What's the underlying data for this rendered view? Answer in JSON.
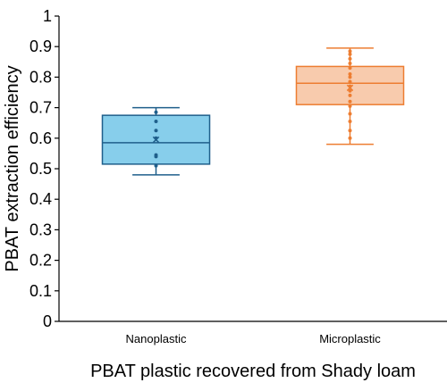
{
  "chart_data": {
    "type": "box",
    "xlabel": "PBAT plastic recovered from Shady loam",
    "ylabel": "PBAT extraction efficiency",
    "ylim": [
      0,
      1
    ],
    "yticks": [
      0,
      0.1,
      0.2,
      0.3,
      0.4,
      0.5,
      0.6,
      0.7,
      0.8,
      0.9,
      1
    ],
    "ytick_labels": [
      "0",
      "0.1",
      "0.2",
      "0.3",
      "0.4",
      "0.5",
      "0.6",
      "0.7",
      "0.8",
      "0.9",
      "1"
    ],
    "grid": false,
    "legend": "none",
    "categories": [
      "Nanoplastic",
      "Microplastic"
    ],
    "boxes": [
      {
        "category": "Nanoplastic",
        "fill": "#87ceeb",
        "stroke": "#1f5f8b",
        "whisker_low": 0.48,
        "q1": 0.515,
        "median": 0.585,
        "q3": 0.675,
        "whisker_high": 0.7,
        "mean": 0.595,
        "points": [
          0.51,
          0.54,
          0.545,
          0.6,
          0.625,
          0.655,
          0.685
        ]
      },
      {
        "category": "Microplastic",
        "fill": "#f8cbad",
        "stroke": "#ed7d31",
        "whisker_low": 0.58,
        "q1": 0.71,
        "median": 0.78,
        "q3": 0.835,
        "whisker_high": 0.895,
        "mean": 0.765,
        "points": [
          0.6,
          0.625,
          0.655,
          0.68,
          0.705,
          0.72,
          0.74,
          0.755,
          0.77,
          0.785,
          0.8,
          0.81,
          0.83,
          0.845,
          0.86,
          0.875,
          0.885
        ]
      }
    ]
  }
}
